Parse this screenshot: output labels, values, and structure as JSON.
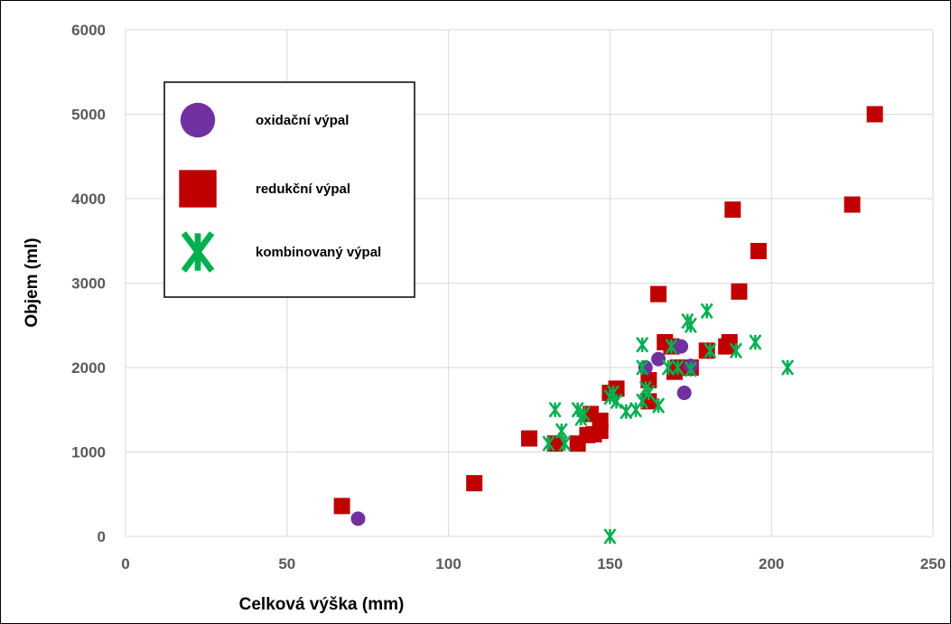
{
  "chart_data": {
    "type": "scatter",
    "title": "",
    "xlabel": "Celková výška (mm)",
    "ylabel": "Objem (ml)",
    "xlim": [
      0,
      250
    ],
    "ylim": [
      0,
      6000
    ],
    "xticks": [
      0,
      50,
      100,
      150,
      200,
      250
    ],
    "yticks": [
      0,
      1000,
      2000,
      3000,
      4000,
      5000,
      6000
    ],
    "grid": true,
    "legend_position": "top-left",
    "series": [
      {
        "name": "oxidační výpal",
        "marker": "circle",
        "color": "#7030A0",
        "points": [
          [
            72,
            210
          ],
          [
            161,
            2000
          ],
          [
            165,
            2100
          ],
          [
            172,
            2250
          ],
          [
            173,
            1700
          ],
          [
            175,
            2020
          ]
        ]
      },
      {
        "name": "redukční výpal",
        "marker": "square",
        "color": "#C00000",
        "points": [
          [
            67,
            360
          ],
          [
            108,
            630
          ],
          [
            125,
            1160
          ],
          [
            133,
            1100
          ],
          [
            140,
            1100
          ],
          [
            143,
            1200
          ],
          [
            144,
            1450
          ],
          [
            145,
            1210
          ],
          [
            147,
            1250
          ],
          [
            147,
            1370
          ],
          [
            150,
            1700
          ],
          [
            152,
            1750
          ],
          [
            162,
            1600
          ],
          [
            162,
            1850
          ],
          [
            165,
            2870
          ],
          [
            167,
            2300
          ],
          [
            169,
            2250
          ],
          [
            170,
            1950
          ],
          [
            171,
            2000
          ],
          [
            175,
            2000
          ],
          [
            180,
            2200
          ],
          [
            186,
            2250
          ],
          [
            187,
            2300
          ],
          [
            188,
            3870
          ],
          [
            190,
            2900
          ],
          [
            196,
            3380
          ],
          [
            225,
            3930
          ],
          [
            232,
            5000
          ]
        ]
      },
      {
        "name": "kombinovaný výpal",
        "marker": "star",
        "color": "#00B050",
        "points": [
          [
            131,
            1100
          ],
          [
            133,
            1500
          ],
          [
            135,
            1250
          ],
          [
            136,
            1100
          ],
          [
            140,
            1500
          ],
          [
            141,
            1400
          ],
          [
            142,
            1450
          ],
          [
            150,
            1650
          ],
          [
            151,
            1700
          ],
          [
            152,
            1600
          ],
          [
            155,
            1480
          ],
          [
            158,
            1500
          ],
          [
            160,
            1600
          ],
          [
            160,
            2000
          ],
          [
            161,
            1750
          ],
          [
            162,
            1700
          ],
          [
            160,
            2270
          ],
          [
            165,
            1550
          ],
          [
            168,
            2000
          ],
          [
            169,
            2250
          ],
          [
            171,
            2000
          ],
          [
            174,
            2550
          ],
          [
            175,
            2500
          ],
          [
            175,
            1980
          ],
          [
            180,
            2670
          ],
          [
            181,
            2200
          ],
          [
            189,
            2200
          ],
          [
            195,
            2300
          ],
          [
            205,
            2000
          ],
          [
            150,
            0
          ]
        ]
      }
    ]
  }
}
